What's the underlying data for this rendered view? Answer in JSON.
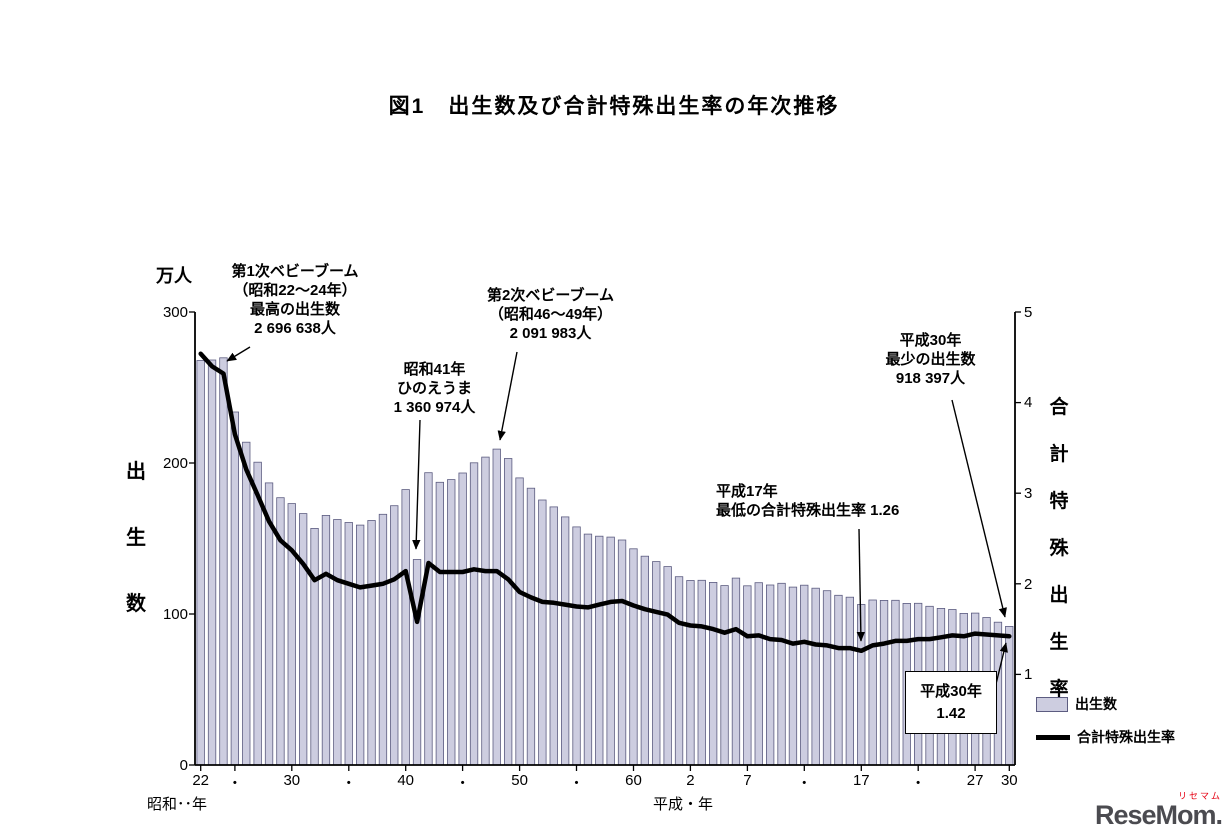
{
  "title": "図1　出生数及び合計特殊出生率の年次推移",
  "axes": {
    "left_unit": "万人",
    "left_title": "出生数",
    "left_ticks": [
      "300",
      "200",
      "100",
      "0"
    ],
    "right_title": "合計特殊出生率",
    "right_ticks": [
      "5",
      "4",
      "3",
      "2",
      "1"
    ],
    "era_left": "昭和･･年",
    "era_right": "平成・年"
  },
  "annotations": {
    "boom1": {
      "l1": "第1次ベビーブーム",
      "l2": "（昭和22～24年）",
      "l3": "最高の出生数",
      "l4": "2 696 638人"
    },
    "hinoeuma": {
      "l1": "昭和41年",
      "l2": "ひのえうま",
      "l3": "1 360 974人"
    },
    "boom2": {
      "l1": "第2次ベビーブーム",
      "l2": "（昭和46～49年）",
      "l3": "2 091 983人"
    },
    "h30_births": {
      "l1": "平成30年",
      "l2": "最少の出生数",
      "l3": "918 397人"
    },
    "h17_tfr": {
      "l1": "平成17年",
      "l2": "最低の合計特殊出生率 1.26"
    },
    "h30_tfr_box": {
      "l1": "平成30年",
      "l2": "1.42"
    }
  },
  "legend": {
    "bars": "出生数",
    "line": "合計特殊出生率"
  },
  "watermark": {
    "sub": "リセマム",
    "main": "ReseMom."
  },
  "chart_data": {
    "type": "bar",
    "combo": "bar (births, left axis) + line (total fertility rate, right axis)",
    "title": "図1　出生数及び合計特殊出生率の年次推移",
    "year_start": 1947,
    "year_end": 2018,
    "left_axis_max": 300,
    "right_axis_max": 5,
    "left_axis": {
      "label": "出生数（万人）",
      "ticks": [
        0,
        100,
        200,
        300
      ]
    },
    "right_axis": {
      "label": "合計特殊出生率",
      "ticks": [
        1,
        2,
        3,
        4,
        5
      ]
    },
    "x_ticks": [
      {
        "year": 1947,
        "label": "22"
      },
      {
        "year": 1950,
        "label": "・"
      },
      {
        "year": 1955,
        "label": "30"
      },
      {
        "year": 1960,
        "label": "・"
      },
      {
        "year": 1965,
        "label": "40"
      },
      {
        "year": 1970,
        "label": "・"
      },
      {
        "year": 1975,
        "label": "50"
      },
      {
        "year": 1980,
        "label": "・"
      },
      {
        "year": 1985,
        "label": "60"
      },
      {
        "year": 1990,
        "label": "2"
      },
      {
        "year": 1995,
        "label": "7"
      },
      {
        "year": 2000,
        "label": "・"
      },
      {
        "year": 2005,
        "label": "17"
      },
      {
        "year": 2010,
        "label": "・"
      },
      {
        "year": 2015,
        "label": "27"
      },
      {
        "year": 2018,
        "label": "30"
      }
    ],
    "series": [
      {
        "name": "出生数",
        "axis": "left",
        "unit": "万人",
        "values": [
          267.9,
          268.2,
          269.7,
          233.8,
          213.8,
          200.5,
          186.8,
          177.0,
          173.1,
          166.5,
          156.7,
          165.3,
          162.6,
          160.6,
          158.9,
          161.9,
          166.0,
          171.7,
          182.4,
          136.1,
          193.6,
          187.2,
          189.0,
          193.4,
          200.1,
          203.9,
          209.2,
          203.0,
          190.1,
          183.3,
          175.5,
          170.9,
          164.3,
          157.7,
          152.9,
          151.5,
          150.9,
          149.0,
          143.2,
          138.3,
          134.7,
          131.4,
          124.7,
          122.2,
          122.3,
          120.9,
          118.8,
          123.8,
          118.7,
          120.7,
          119.2,
          120.3,
          117.8,
          119.1,
          117.1,
          115.4,
          112.4,
          111.1,
          106.3,
          109.3,
          109.0,
          109.1,
          107.0,
          107.1,
          105.1,
          103.7,
          103.0,
          100.4,
          100.6,
          97.7,
          94.6,
          91.8
        ]
      },
      {
        "name": "合計特殊出生率",
        "axis": "right",
        "values": [
          4.54,
          4.4,
          4.32,
          3.65,
          3.26,
          2.98,
          2.69,
          2.48,
          2.37,
          2.22,
          2.04,
          2.11,
          2.04,
          2.0,
          1.96,
          1.98,
          2.0,
          2.05,
          2.14,
          1.58,
          2.23,
          2.13,
          2.13,
          2.13,
          2.16,
          2.14,
          2.14,
          2.05,
          1.91,
          1.85,
          1.8,
          1.79,
          1.77,
          1.75,
          1.74,
          1.77,
          1.8,
          1.81,
          1.76,
          1.72,
          1.69,
          1.66,
          1.57,
          1.54,
          1.53,
          1.5,
          1.46,
          1.5,
          1.42,
          1.43,
          1.39,
          1.38,
          1.34,
          1.36,
          1.33,
          1.32,
          1.29,
          1.29,
          1.26,
          1.32,
          1.34,
          1.37,
          1.37,
          1.39,
          1.39,
          1.41,
          1.43,
          1.42,
          1.45,
          1.44,
          1.43,
          1.42
        ]
      }
    ],
    "key_points": {
      "max_births": {
        "era_year": "昭和22～24年",
        "value_persons": "2 696 638人"
      },
      "hinoeuma": {
        "era_year": "昭和41年",
        "value_persons": "1 360 974人"
      },
      "second_boom": {
        "era_year": "昭和46～49年",
        "value_persons": "2 091 983人"
      },
      "min_births": {
        "era_year": "平成30年",
        "value_persons": "918 397人"
      },
      "min_tfr": {
        "era_year": "平成17年",
        "value": 1.26
      },
      "latest_tfr": {
        "era_year": "平成30年",
        "value": 1.42
      }
    },
    "colors": {
      "bar_fill": "#cdcde0",
      "bar_stroke": "#5c5c80",
      "line_color": "#000000"
    }
  }
}
